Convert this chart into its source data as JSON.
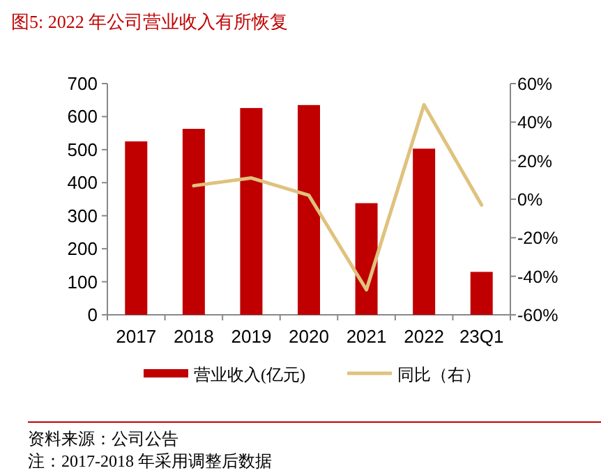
{
  "chart_data": {
    "type": "bar",
    "title": "图5:  2022 年公司营业收入有所恢复",
    "categories": [
      "2017",
      "2018",
      "2019",
      "2020",
      "2021",
      "2022",
      "23Q1"
    ],
    "series": [
      {
        "name": "营业收入(亿元)",
        "color": "#c00000",
        "values": [
          525,
          563,
          626,
          635,
          338,
          503,
          130
        ]
      },
      {
        "name": "同比（右）",
        "type": "line",
        "axis": "y2",
        "color": "#dfc27d",
        "values": [
          null,
          7,
          11,
          2,
          -47,
          49,
          -3
        ]
      }
    ],
    "ylim": [
      0,
      700
    ],
    "yticks": [
      0,
      100,
      200,
      300,
      400,
      500,
      600,
      700
    ],
    "y2lim": [
      -60,
      60
    ],
    "y2ticks": [
      {
        "value": -60,
        "label": "-60%"
      },
      {
        "value": -40,
        "label": "-40%"
      },
      {
        "value": -20,
        "label": "-20%"
      },
      {
        "value": 0,
        "label": "0%"
      },
      {
        "value": 20,
        "label": "20%"
      },
      {
        "value": 40,
        "label": "40%"
      },
      {
        "value": 60,
        "label": "60%"
      }
    ],
    "grid": false,
    "legend": "bottom",
    "marker": "none",
    "line_style": "solid",
    "annotations": [
      "资料来源：公司公告",
      "注：2017-2018 年采用调整后数据"
    ]
  }
}
